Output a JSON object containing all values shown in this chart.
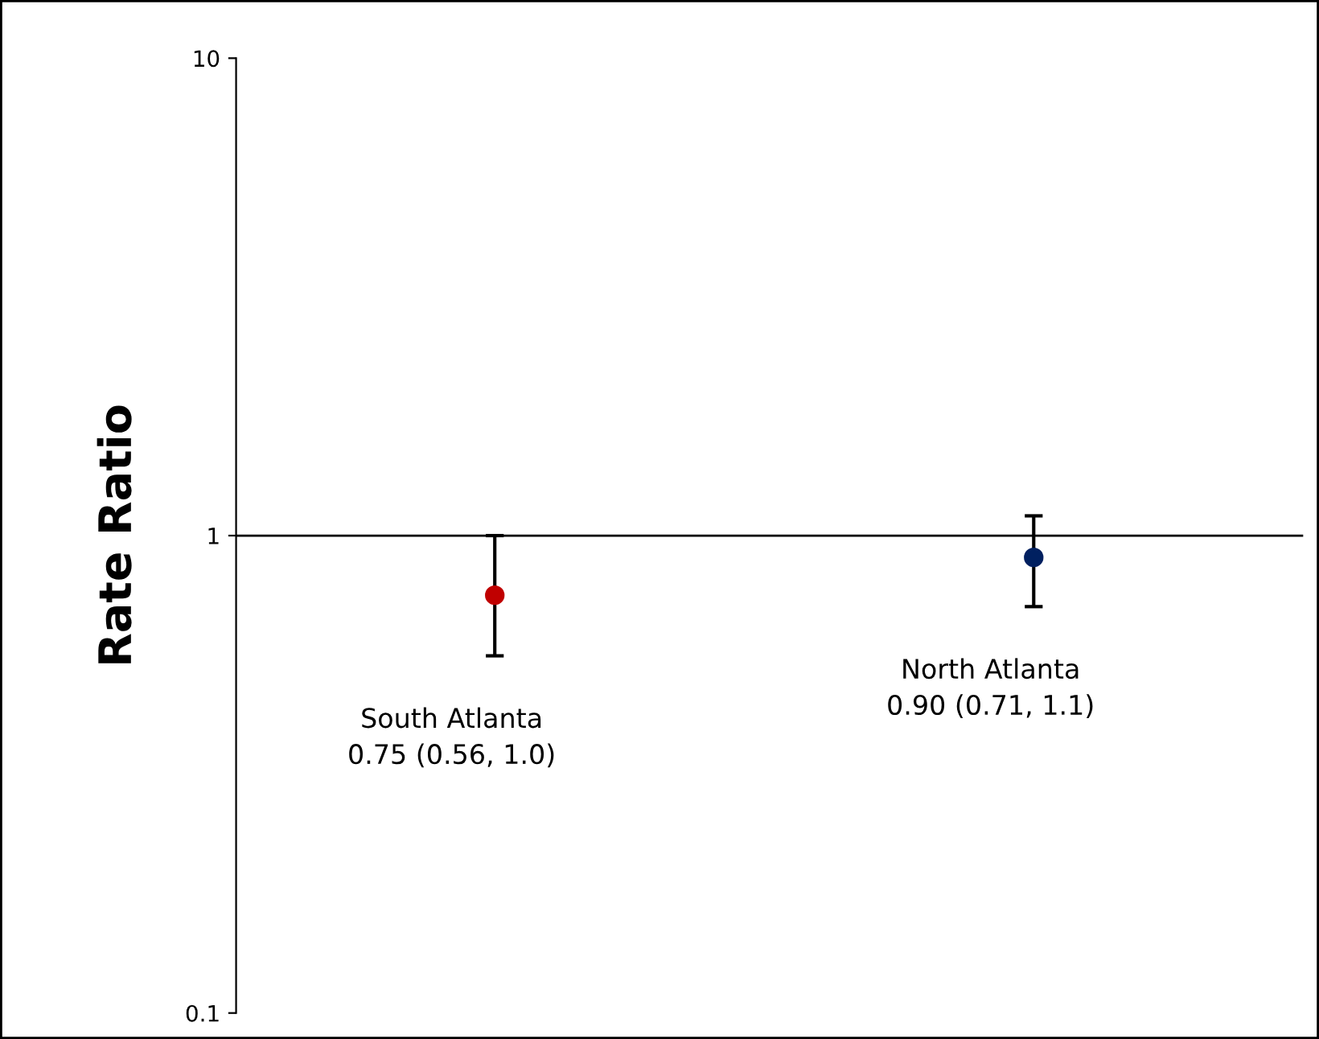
{
  "chart_data": {
    "type": "scatter",
    "ylabel": "Rate Ratio",
    "categories": [
      null,
      null
    ],
    "values": [
      0.75,
      0.9
    ],
    "colors": [
      "#c00000",
      "#002060"
    ],
    "errors": [
      [
        0.56,
        1.0
      ],
      [
        0.71,
        1.1
      ]
    ],
    "log": "y",
    "ylim": [
      0.1,
      10
    ],
    "yticks": [
      0.1,
      1,
      10
    ],
    "ref_lines": [
      {
        "axis": "y",
        "value": 1,
        "color": "#000000"
      }
    ],
    "annotations": [
      "South Atlanta\n0.75 (0.56, 1.0)",
      "North Atlanta\n0.90 (0.71, 1.1)"
    ],
    "marker": "circle",
    "grid": false,
    "legend": false,
    "tick_labels": "y"
  }
}
